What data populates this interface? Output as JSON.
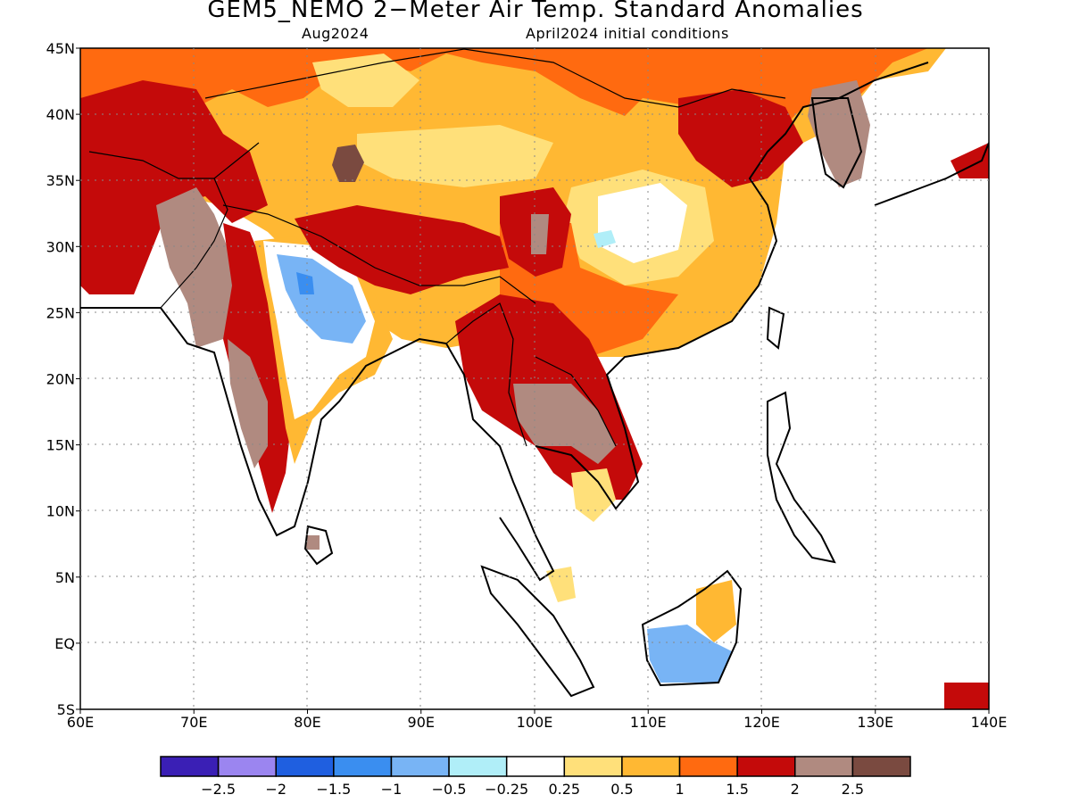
{
  "title": "GEM5_NEMO 2−Meter Air Temp. Standard Anomalies",
  "subtitle_left": "Aug2024",
  "subtitle_right": "April2024 initial conditions",
  "map": {
    "lon_range": [
      60,
      140
    ],
    "lat_range": [
      -5,
      45
    ],
    "lon_ticks": [
      "60E",
      "70E",
      "80E",
      "90E",
      "100E",
      "110E",
      "120E",
      "130E",
      "140E"
    ],
    "lat_ticks": [
      "45N",
      "40N",
      "35N",
      "30N",
      "25N",
      "20N",
      "15N",
      "10N",
      "5N",
      "EQ",
      "5S"
    ]
  },
  "colorbar": {
    "colors": [
      "#3a1fb5",
      "#9b85f0",
      "#1f5fe0",
      "#3a8ef0",
      "#78b4f5",
      "#b0eef8",
      "#ffffff",
      "#ffe07a",
      "#ffb833",
      "#ff6a10",
      "#c40a0a",
      "#b08a80",
      "#7a4a40"
    ],
    "labels": [
      "−2.5",
      "−2",
      "−1.5",
      "−1",
      "−0.5",
      "−0.25",
      "0.25",
      "0.5",
      "1",
      "1.5",
      "2",
      "2.5"
    ]
  },
  "regions": [
    {
      "name": "central-asia-warm",
      "color": "#ffb833"
    },
    {
      "name": "northwest-hot",
      "color": "#c40a0a"
    },
    {
      "name": "tibet-hot",
      "color": "#c40a0a"
    },
    {
      "name": "north-india-cool",
      "color": "#78b4f5"
    },
    {
      "name": "indochina-extreme",
      "color": "#b08a80"
    },
    {
      "name": "borneo-cool",
      "color": "#78b4f5"
    }
  ]
}
